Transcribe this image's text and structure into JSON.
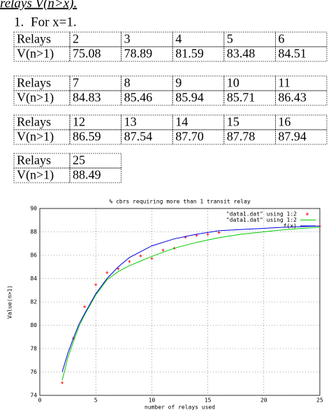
{
  "heading": "relays V(n>x).",
  "item": {
    "number": "1.",
    "text": "For x=1."
  },
  "tables": [
    {
      "rows": [
        [
          "Relays",
          "2",
          "3",
          "4",
          "5",
          "6"
        ],
        [
          "V(n>1)",
          "75.08",
          "78.89",
          "81.59",
          "83.48",
          "84.51"
        ]
      ]
    },
    {
      "rows": [
        [
          "Relays",
          "7",
          "8",
          "9",
          "10",
          "11"
        ],
        [
          "V(n>1)",
          "84.83",
          "85.46",
          "85.94",
          "85.71",
          "86.43"
        ]
      ]
    },
    {
      "rows": [
        [
          "Relays",
          "12",
          "13",
          "14",
          "15",
          "16"
        ],
        [
          "V(n>1)",
          "86.59",
          "87.54",
          "87.70",
          "87.78",
          "87.94"
        ]
      ]
    },
    {
      "rows": [
        [
          "Relays",
          "25"
        ],
        [
          "V(n>1)",
          "88.49"
        ]
      ]
    }
  ],
  "chart_data": {
    "type": "scatter",
    "title": "% cbrs requiring more than 1 transit relay",
    "x_label": "number of relays used",
    "y_label": "Value(n>1)",
    "xlim": [
      0,
      25
    ],
    "xticks": [
      0,
      5,
      10,
      15,
      20,
      25
    ],
    "ylim": [
      74,
      90
    ],
    "yticks": [
      74,
      76,
      78,
      80,
      82,
      84,
      86,
      88,
      90
    ],
    "grid": true,
    "legend": "top-right",
    "series": [
      {
        "name": "\"data1.dat\" using 1:2",
        "color": "#ff0000",
        "style": "points",
        "x": [
          2,
          3,
          4,
          5,
          6,
          7,
          8,
          9,
          10,
          11,
          12,
          13,
          14,
          15,
          16,
          25
        ],
        "values": [
          75.08,
          78.89,
          81.59,
          83.48,
          84.51,
          84.83,
          85.46,
          85.94,
          85.71,
          86.43,
          86.59,
          87.54,
          87.7,
          87.78,
          87.94,
          88.49
        ]
      },
      {
        "name": "\"data1.dat\" using 1:2",
        "color": "#00cc00",
        "style": "line",
        "x": [
          2,
          2.5,
          3,
          3.5,
          4,
          5,
          6,
          7,
          8,
          9,
          10,
          12,
          14,
          16,
          18,
          20,
          22,
          25
        ],
        "values": [
          75.3,
          77.2,
          78.6,
          79.9,
          80.9,
          82.6,
          83.9,
          84.6,
          85.1,
          85.5,
          85.9,
          86.6,
          87.1,
          87.5,
          87.8,
          88.0,
          88.2,
          88.4
        ]
      },
      {
        "name": "f(x)",
        "color": "#0000dd",
        "style": "line",
        "x": [
          2,
          2.5,
          3,
          3.5,
          4,
          5,
          6,
          7,
          8,
          9,
          10,
          12,
          14,
          16,
          18,
          20,
          22,
          25
        ],
        "values": [
          76.0,
          77.6,
          78.9,
          80.1,
          81.0,
          82.7,
          84.0,
          85.0,
          85.8,
          86.3,
          86.8,
          87.4,
          87.8,
          88.1,
          88.2,
          88.3,
          88.4,
          88.5
        ]
      }
    ]
  }
}
